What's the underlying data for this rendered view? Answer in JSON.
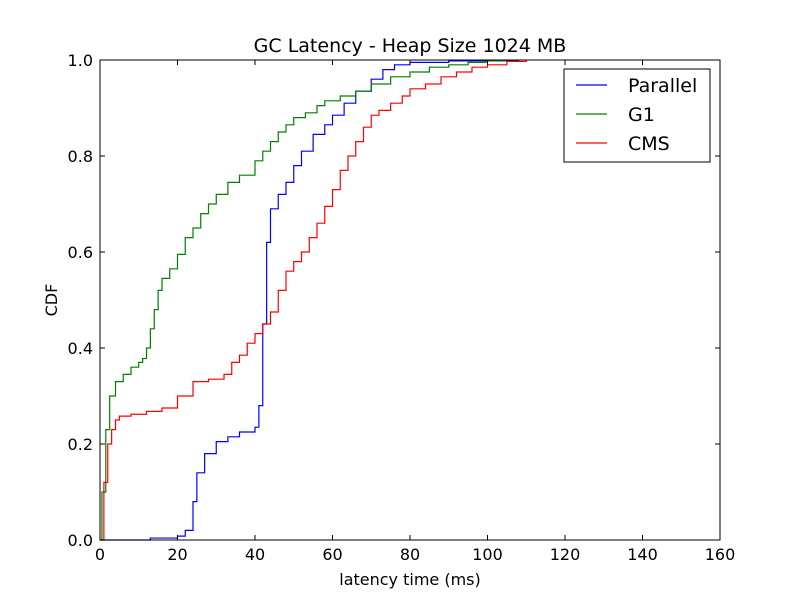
{
  "chart_data": {
    "type": "line",
    "title": "GC Latency - Heap Size 1024 MB",
    "xlabel": "latency time (ms)",
    "ylabel": "CDF",
    "xlim": [
      0,
      160
    ],
    "ylim": [
      0,
      1.0
    ],
    "x_ticks": [
      0,
      20,
      40,
      60,
      80,
      100,
      120,
      140,
      160
    ],
    "x_tick_labels": [
      "0",
      "20",
      "40",
      "60",
      "80",
      "100",
      "120",
      "140",
      "160"
    ],
    "y_ticks": [
      0.0,
      0.2,
      0.4,
      0.6,
      0.8,
      1.0
    ],
    "y_tick_labels": [
      "0.0",
      "0.2",
      "0.4",
      "0.6",
      "0.8",
      "1.0"
    ],
    "grid": false,
    "legend_position": "top-right",
    "series": [
      {
        "name": "Parallel",
        "color": "#0000ff",
        "points": [
          [
            0,
            0
          ],
          [
            10,
            0
          ],
          [
            13,
            0.004
          ],
          [
            20,
            0.008
          ],
          [
            22,
            0.02
          ],
          [
            24,
            0.08
          ],
          [
            25,
            0.14
          ],
          [
            27,
            0.18
          ],
          [
            30,
            0.205
          ],
          [
            33,
            0.215
          ],
          [
            36,
            0.225
          ],
          [
            40,
            0.235
          ],
          [
            41,
            0.28
          ],
          [
            42,
            0.45
          ],
          [
            43,
            0.62
          ],
          [
            44,
            0.69
          ],
          [
            46,
            0.72
          ],
          [
            48,
            0.745
          ],
          [
            50,
            0.78
          ],
          [
            52,
            0.81
          ],
          [
            55,
            0.845
          ],
          [
            58,
            0.865
          ],
          [
            60,
            0.885
          ],
          [
            63,
            0.91
          ],
          [
            66,
            0.935
          ],
          [
            70,
            0.96
          ],
          [
            73,
            0.98
          ],
          [
            76,
            0.99
          ],
          [
            80,
            0.995
          ],
          [
            90,
            0.998
          ],
          [
            100,
            0.999
          ],
          [
            108,
            1.0
          ]
        ]
      },
      {
        "name": "G1",
        "color": "#008000",
        "points": [
          [
            0,
            0
          ],
          [
            0.5,
            0.1
          ],
          [
            1.5,
            0.23
          ],
          [
            2.5,
            0.3
          ],
          [
            4,
            0.33
          ],
          [
            6,
            0.345
          ],
          [
            8,
            0.36
          ],
          [
            10,
            0.37
          ],
          [
            11,
            0.378
          ],
          [
            12,
            0.4
          ],
          [
            13,
            0.44
          ],
          [
            14,
            0.48
          ],
          [
            15,
            0.52
          ],
          [
            16,
            0.545
          ],
          [
            18,
            0.565
          ],
          [
            20,
            0.595
          ],
          [
            22,
            0.63
          ],
          [
            24,
            0.65
          ],
          [
            26,
            0.68
          ],
          [
            28,
            0.7
          ],
          [
            30,
            0.72
          ],
          [
            33,
            0.745
          ],
          [
            36,
            0.76
          ],
          [
            40,
            0.79
          ],
          [
            42,
            0.81
          ],
          [
            44,
            0.83
          ],
          [
            46,
            0.85
          ],
          [
            48,
            0.865
          ],
          [
            50,
            0.88
          ],
          [
            53,
            0.89
          ],
          [
            56,
            0.905
          ],
          [
            58,
            0.915
          ],
          [
            62,
            0.925
          ],
          [
            66,
            0.935
          ],
          [
            70,
            0.95
          ],
          [
            75,
            0.965
          ],
          [
            80,
            0.975
          ],
          [
            85,
            0.985
          ],
          [
            90,
            0.99
          ],
          [
            95,
            0.995
          ],
          [
            100,
            0.998
          ],
          [
            105,
            1.0
          ]
        ]
      },
      {
        "name": "CMS",
        "color": "#ff0000",
        "points": [
          [
            0,
            0
          ],
          [
            1,
            0.12
          ],
          [
            2,
            0.2
          ],
          [
            3,
            0.23
          ],
          [
            4,
            0.25
          ],
          [
            5,
            0.258
          ],
          [
            8,
            0.262
          ],
          [
            12,
            0.268
          ],
          [
            16,
            0.275
          ],
          [
            20,
            0.3
          ],
          [
            24,
            0.33
          ],
          [
            28,
            0.335
          ],
          [
            32,
            0.345
          ],
          [
            34,
            0.37
          ],
          [
            36,
            0.385
          ],
          [
            38,
            0.41
          ],
          [
            40,
            0.43
          ],
          [
            42,
            0.45
          ],
          [
            44,
            0.475
          ],
          [
            46,
            0.52
          ],
          [
            48,
            0.56
          ],
          [
            50,
            0.58
          ],
          [
            52,
            0.6
          ],
          [
            54,
            0.63
          ],
          [
            56,
            0.66
          ],
          [
            58,
            0.695
          ],
          [
            60,
            0.73
          ],
          [
            62,
            0.77
          ],
          [
            64,
            0.8
          ],
          [
            66,
            0.83
          ],
          [
            68,
            0.86
          ],
          [
            70,
            0.885
          ],
          [
            72,
            0.895
          ],
          [
            75,
            0.91
          ],
          [
            78,
            0.925
          ],
          [
            80,
            0.94
          ],
          [
            84,
            0.95
          ],
          [
            88,
            0.965
          ],
          [
            92,
            0.975
          ],
          [
            96,
            0.985
          ],
          [
            100,
            0.99
          ],
          [
            105,
            0.997
          ],
          [
            110,
            1.0
          ]
        ]
      }
    ]
  }
}
